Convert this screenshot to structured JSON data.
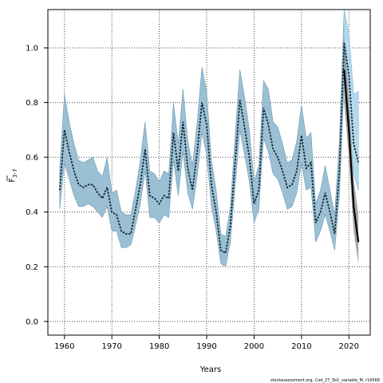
{
  "chart_data": {
    "type": "line",
    "xlabel": "Years",
    "ylabel_main": "F",
    "ylabel_sub": "3-7",
    "xlim": [
      1956.5,
      2024.5
    ],
    "ylim": [
      -0.05,
      1.14
    ],
    "xticks": [
      1960,
      1970,
      1980,
      1990,
      2000,
      2010,
      2020
    ],
    "yticks": [
      0.0,
      0.2,
      0.4,
      0.6,
      0.8,
      1.0
    ],
    "grid": true,
    "footnote": "stockassessment.org, Cod_27_5b1_variable_M, r16568",
    "band_color": "#9bbfd3",
    "line_color": "#000000",
    "series": [
      {
        "role": "main",
        "x": [
          1959,
          1960,
          1961,
          1962,
          1963,
          1964,
          1965,
          1966,
          1967,
          1968,
          1969,
          1970,
          1971,
          1972,
          1973,
          1974,
          1975,
          1976,
          1977,
          1978,
          1979,
          1980,
          1981,
          1982,
          1983,
          1984,
          1985,
          1986,
          1987,
          1988,
          1989,
          1990,
          1991,
          1992,
          1993,
          1994,
          1995,
          1996,
          1997,
          1998,
          1999,
          2000,
          2001,
          2002,
          2003,
          2004,
          2005,
          2006,
          2007,
          2008,
          2009,
          2010,
          2011,
          2012,
          2013,
          2014,
          2015,
          2016,
          2017,
          2018,
          2019,
          2020,
          2021,
          2022
        ],
        "y": [
          0.48,
          0.7,
          0.62,
          0.55,
          0.5,
          0.49,
          0.5,
          0.5,
          0.47,
          0.45,
          0.49,
          0.4,
          0.39,
          0.33,
          0.32,
          0.32,
          0.41,
          0.5,
          0.63,
          0.46,
          0.45,
          0.43,
          0.46,
          0.45,
          0.69,
          0.55,
          0.73,
          0.56,
          0.48,
          0.62,
          0.8,
          0.72,
          0.5,
          0.4,
          0.26,
          0.25,
          0.35,
          0.58,
          0.81,
          0.71,
          0.6,
          0.43,
          0.48,
          0.78,
          0.72,
          0.63,
          0.6,
          0.55,
          0.49,
          0.5,
          0.55,
          0.68,
          0.56,
          0.58,
          0.36,
          0.4,
          0.47,
          0.4,
          0.32,
          0.55,
          1.02,
          0.9,
          0.65,
          0.58
        ],
        "lower": [
          0.41,
          0.58,
          0.52,
          0.46,
          0.42,
          0.42,
          0.43,
          0.42,
          0.4,
          0.38,
          0.42,
          0.33,
          0.33,
          0.27,
          0.27,
          0.28,
          0.35,
          0.43,
          0.55,
          0.38,
          0.38,
          0.36,
          0.39,
          0.38,
          0.59,
          0.46,
          0.62,
          0.47,
          0.41,
          0.53,
          0.69,
          0.61,
          0.42,
          0.33,
          0.21,
          0.2,
          0.29,
          0.49,
          0.7,
          0.61,
          0.51,
          0.36,
          0.41,
          0.67,
          0.62,
          0.54,
          0.52,
          0.47,
          0.41,
          0.42,
          0.47,
          0.58,
          0.48,
          0.49,
          0.29,
          0.33,
          0.39,
          0.33,
          0.26,
          0.46,
          0.88,
          0.76,
          0.54,
          0.48
        ],
        "upper": [
          0.56,
          0.83,
          0.73,
          0.65,
          0.59,
          0.58,
          0.59,
          0.6,
          0.55,
          0.53,
          0.6,
          0.47,
          0.48,
          0.4,
          0.39,
          0.39,
          0.48,
          0.59,
          0.73,
          0.55,
          0.54,
          0.51,
          0.55,
          0.54,
          0.8,
          0.65,
          0.85,
          0.66,
          0.57,
          0.73,
          0.93,
          0.84,
          0.59,
          0.48,
          0.32,
          0.31,
          0.42,
          0.68,
          0.92,
          0.82,
          0.7,
          0.51,
          0.57,
          0.88,
          0.85,
          0.73,
          0.71,
          0.65,
          0.58,
          0.59,
          0.66,
          0.79,
          0.67,
          0.69,
          0.43,
          0.48,
          0.57,
          0.48,
          0.39,
          0.66,
          1.2,
          1.05,
          0.83,
          0.84
        ]
      },
      {
        "role": "retro",
        "x": [
          2019,
          2020,
          2021,
          2022
        ],
        "y": [
          0.92,
          0.7,
          0.42,
          0.29
        ],
        "lower": [
          0.8,
          0.6,
          0.33,
          0.21
        ],
        "upper": [
          1.04,
          0.81,
          0.52,
          0.39
        ]
      }
    ]
  }
}
